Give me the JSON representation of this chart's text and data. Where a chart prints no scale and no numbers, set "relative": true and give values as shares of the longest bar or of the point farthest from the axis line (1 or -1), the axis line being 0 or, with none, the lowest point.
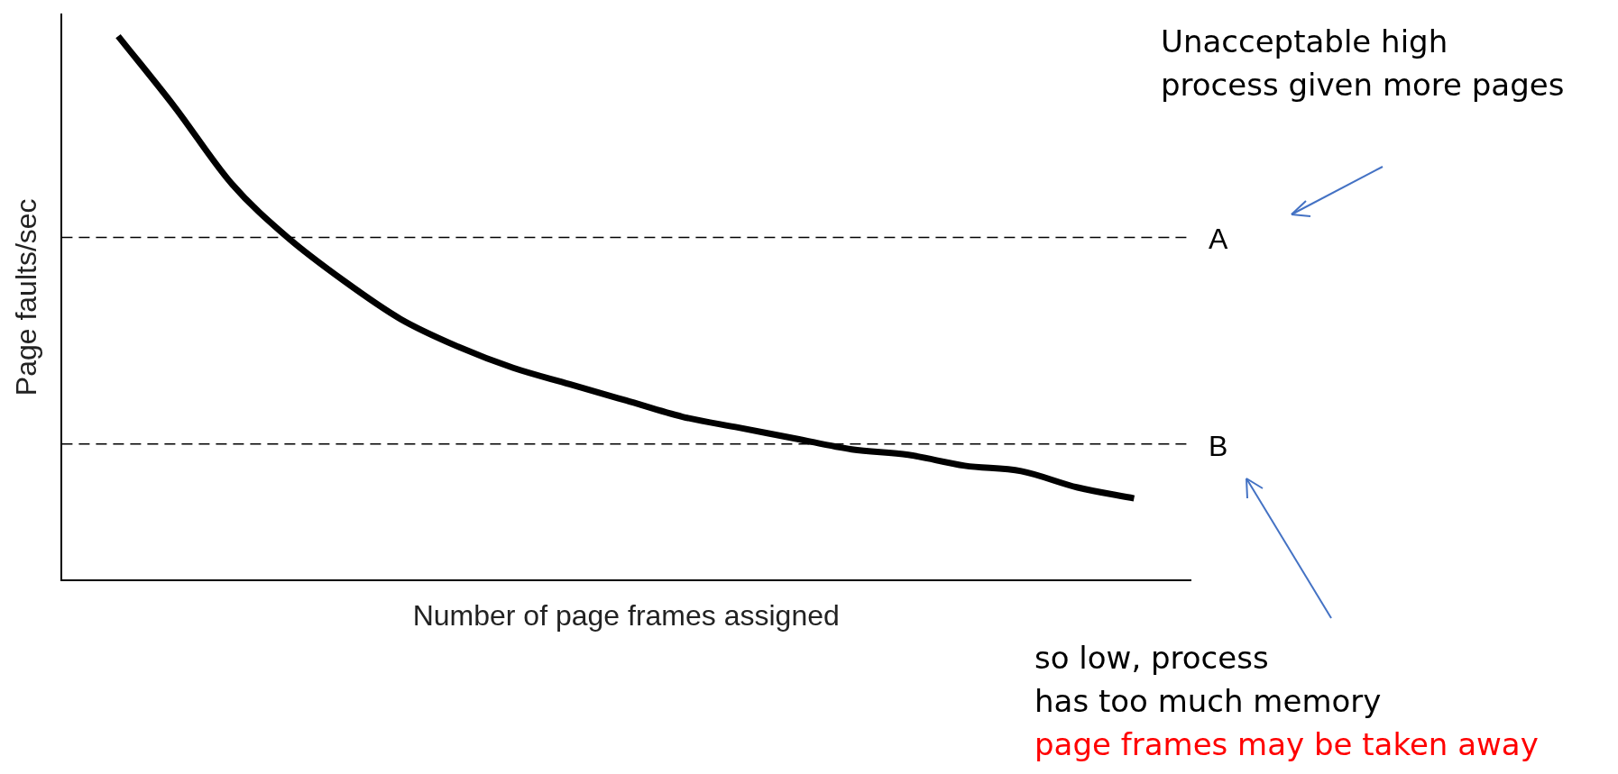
{
  "chart_data": {
    "type": "line",
    "relative": true,
    "xlabel": "Number of page frames assigned",
    "ylabel": "Page faults/sec",
    "categories": [
      null,
      null,
      null,
      null,
      null,
      null,
      null,
      null,
      null,
      null,
      null,
      null,
      null,
      null,
      null,
      null,
      null,
      null,
      null,
      null,
      null
    ],
    "series": [
      {
        "color": "#000000",
        "values": [
          null,
          1.0,
          0.87,
          0.73,
          0.63,
          0.55,
          0.48,
          0.43,
          0.39,
          0.36,
          0.33,
          0.3,
          0.28,
          0.26,
          0.24,
          0.23,
          0.21,
          0.2,
          0.17,
          0.15,
          null
        ]
      }
    ],
    "ref_lines": [
      {
        "axis": "y",
        "value": 0.63,
        "label": "A",
        "color": "#000000",
        "line_style": "dashed"
      },
      {
        "axis": "y",
        "value": 0.25,
        "label": "B",
        "color": "#000000",
        "line_style": "dashed"
      }
    ],
    "annotations": [
      "Unacceptable high\nprocess given more pages",
      "so low, process\nhas too much memory",
      "page frames may be taken away"
    ],
    "grid": false,
    "legend": false
  }
}
